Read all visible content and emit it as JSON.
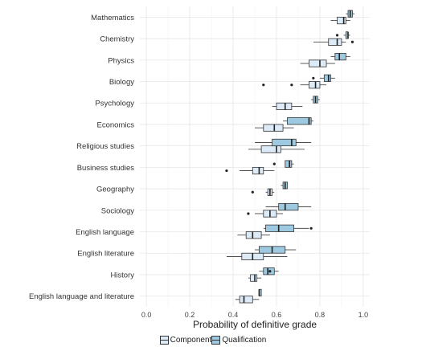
{
  "chart_data": {
    "type": "boxplot",
    "xlabel": "Probability of definitive grade",
    "ylabel": "",
    "xlim": [
      -0.03,
      1.03
    ],
    "x_ticks": [
      "0.0",
      "0.2",
      "0.4",
      "0.6",
      "0.8",
      "1.0"
    ],
    "x_tick_values": [
      0.0,
      0.2,
      0.4,
      0.6,
      0.8,
      1.0
    ],
    "grid": true,
    "legend_position": "bottom",
    "categories": [
      "Mathematics",
      "Chemistry",
      "Physics",
      "Biology",
      "Psychology",
      "Economics",
      "Religious studies",
      "Business studies",
      "Geography",
      "Sociology",
      "English language",
      "English literature",
      "History",
      "English language and literature"
    ],
    "series": [
      {
        "name": "Component",
        "color": "#ddeaf7",
        "boxes": [
          {
            "category": "Mathematics",
            "whisker_low": 0.85,
            "q1": 0.88,
            "median": 0.91,
            "q3": 0.92,
            "whisker_high": 0.94,
            "outliers": []
          },
          {
            "category": "Chemistry",
            "whisker_low": 0.77,
            "q1": 0.84,
            "median": 0.88,
            "q3": 0.9,
            "whisker_high": 0.92,
            "outliers": [
              0.95
            ]
          },
          {
            "category": "Physics",
            "whisker_low": 0.71,
            "q1": 0.75,
            "median": 0.8,
            "q3": 0.83,
            "whisker_high": 0.87,
            "outliers": []
          },
          {
            "category": "Biology",
            "whisker_low": 0.71,
            "q1": 0.75,
            "median": 0.78,
            "q3": 0.8,
            "whisker_high": 0.83,
            "outliers": [
              0.54,
              0.67
            ]
          },
          {
            "category": "Psychology",
            "whisker_low": 0.58,
            "q1": 0.6,
            "median": 0.64,
            "q3": 0.67,
            "whisker_high": 0.72,
            "outliers": []
          },
          {
            "category": "Economics",
            "whisker_low": 0.5,
            "q1": 0.54,
            "median": 0.59,
            "q3": 0.63,
            "whisker_high": 0.68,
            "outliers": []
          },
          {
            "category": "Religious studies",
            "whisker_low": 0.47,
            "q1": 0.53,
            "median": 0.6,
            "q3": 0.62,
            "whisker_high": 0.73,
            "outliers": []
          },
          {
            "category": "Business studies",
            "whisker_low": 0.43,
            "q1": 0.49,
            "median": 0.52,
            "q3": 0.54,
            "whisker_high": 0.59,
            "outliers": [
              0.37
            ]
          },
          {
            "category": "Geography",
            "whisker_low": 0.55,
            "q1": 0.56,
            "median": 0.57,
            "q3": 0.58,
            "whisker_high": 0.59,
            "outliers": [
              0.49
            ]
          },
          {
            "category": "Sociology",
            "whisker_low": 0.5,
            "q1": 0.54,
            "median": 0.57,
            "q3": 0.6,
            "whisker_high": 0.63,
            "outliers": [
              0.47
            ]
          },
          {
            "category": "English language",
            "whisker_low": 0.42,
            "q1": 0.46,
            "median": 0.49,
            "q3": 0.53,
            "whisker_high": 0.57,
            "outliers": []
          },
          {
            "category": "English literature",
            "whisker_low": 0.37,
            "q1": 0.44,
            "median": 0.49,
            "q3": 0.54,
            "whisker_high": 0.65,
            "outliers": []
          },
          {
            "category": "History",
            "whisker_low": 0.47,
            "q1": 0.48,
            "median": 0.5,
            "q3": 0.51,
            "whisker_high": 0.53,
            "outliers": []
          },
          {
            "category": "English language and literature",
            "whisker_low": 0.41,
            "q1": 0.43,
            "median": 0.45,
            "q3": 0.49,
            "whisker_high": 0.52,
            "outliers": []
          }
        ]
      },
      {
        "name": "Qualification",
        "color": "#9ecae1",
        "boxes": [
          {
            "category": "Mathematics",
            "whisker_low": 0.92,
            "q1": 0.93,
            "median": 0.94,
            "q3": 0.95,
            "whisker_high": 0.96,
            "outliers": []
          },
          {
            "category": "Chemistry",
            "whisker_low": 0.91,
            "q1": 0.92,
            "median": 0.93,
            "q3": 0.93,
            "whisker_high": 0.94,
            "outliers": [
              0.88
            ]
          },
          {
            "category": "Physics",
            "whisker_low": 0.85,
            "q1": 0.87,
            "median": 0.89,
            "q3": 0.92,
            "whisker_high": 0.94,
            "outliers": []
          },
          {
            "category": "Biology",
            "whisker_low": 0.8,
            "q1": 0.82,
            "median": 0.84,
            "q3": 0.85,
            "whisker_high": 0.87,
            "outliers": [
              0.77
            ]
          },
          {
            "category": "Psychology",
            "whisker_low": 0.76,
            "q1": 0.77,
            "median": 0.78,
            "q3": 0.79,
            "whisker_high": 0.8,
            "outliers": []
          },
          {
            "category": "Economics",
            "whisker_low": 0.63,
            "q1": 0.65,
            "median": 0.75,
            "q3": 0.76,
            "whisker_high": 0.77,
            "outliers": []
          },
          {
            "category": "Religious studies",
            "whisker_low": 0.5,
            "q1": 0.58,
            "median": 0.67,
            "q3": 0.69,
            "whisker_high": 0.76,
            "outliers": []
          },
          {
            "category": "Business studies",
            "whisker_low": 0.64,
            "q1": 0.64,
            "median": 0.66,
            "q3": 0.67,
            "whisker_high": 0.68,
            "outliers": [
              0.59
            ]
          },
          {
            "category": "Geography",
            "whisker_low": 0.62,
            "q1": 0.63,
            "median": 0.64,
            "q3": 0.65,
            "whisker_high": 0.65,
            "outliers": []
          },
          {
            "category": "Sociology",
            "whisker_low": 0.55,
            "q1": 0.61,
            "median": 0.64,
            "q3": 0.7,
            "whisker_high": 0.76,
            "outliers": []
          },
          {
            "category": "English language",
            "whisker_low": 0.54,
            "q1": 0.55,
            "median": 0.61,
            "q3": 0.68,
            "whisker_high": 0.75,
            "outliers": [
              0.76
            ]
          },
          {
            "category": "English literature",
            "whisker_low": 0.5,
            "q1": 0.52,
            "median": 0.58,
            "q3": 0.64,
            "whisker_high": 0.69,
            "outliers": []
          },
          {
            "category": "History",
            "whisker_low": 0.52,
            "q1": 0.54,
            "median": 0.56,
            "q3": 0.59,
            "whisker_high": 0.61,
            "outliers": [
              0.57
            ]
          },
          {
            "category": "English language and literature",
            "whisker_low": 0.52,
            "q1": 0.52,
            "median": 0.52,
            "q3": 0.53,
            "whisker_high": 0.53,
            "outliers": []
          }
        ]
      }
    ]
  }
}
